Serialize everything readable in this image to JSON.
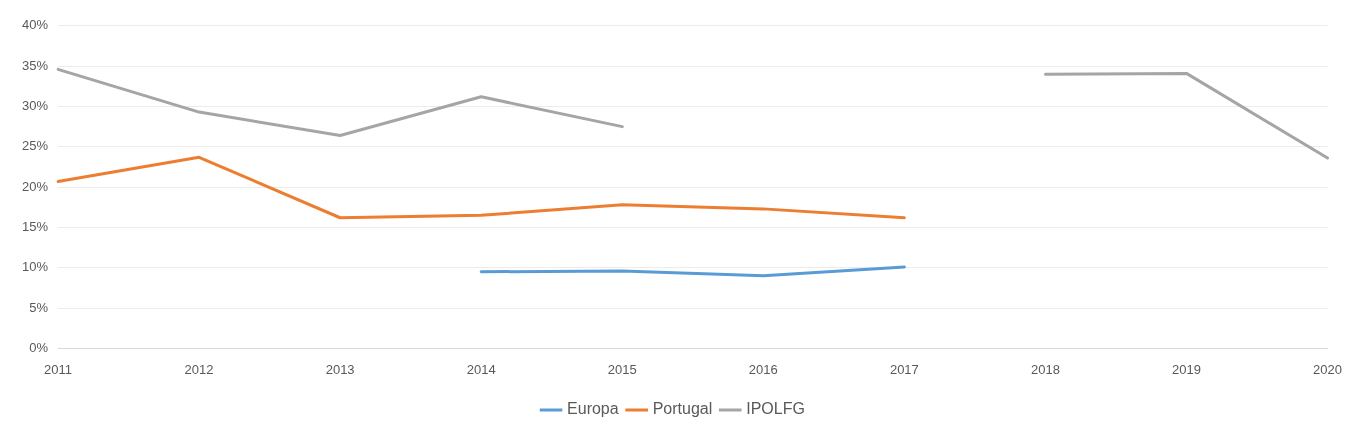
{
  "chart_data": {
    "type": "line",
    "categories": [
      "2011",
      "2012",
      "2013",
      "2014",
      "2015",
      "2016",
      "2017",
      "2018",
      "2019",
      "2020"
    ],
    "series": [
      {
        "name": "Europa",
        "color": "#5b9bd5",
        "values": [
          null,
          null,
          null,
          9.5,
          9.6,
          9.0,
          10.1,
          null,
          null,
          null
        ]
      },
      {
        "name": "Portugal",
        "color": "#ed7d31",
        "values": [
          20.7,
          23.7,
          16.2,
          16.5,
          17.8,
          17.3,
          16.2,
          null,
          null,
          null
        ]
      },
      {
        "name": "IPOLFG",
        "color": "#a5a5a5",
        "values": [
          34.6,
          29.3,
          26.4,
          31.2,
          27.5,
          null,
          null,
          34.0,
          34.1,
          23.6
        ]
      }
    ],
    "ylim": [
      0,
      40
    ],
    "yticks": [
      {
        "value": 0,
        "label": "0%"
      },
      {
        "value": 5,
        "label": "5%"
      },
      {
        "value": 10,
        "label": "10%"
      },
      {
        "value": 15,
        "label": "15%"
      },
      {
        "value": 20,
        "label": "20%"
      },
      {
        "value": 25,
        "label": "25%"
      },
      {
        "value": 30,
        "label": "30%"
      },
      {
        "value": 35,
        "label": "35%"
      },
      {
        "value": 40,
        "label": "40%"
      }
    ],
    "grid": "y",
    "legend": "bottom",
    "marker": "none",
    "line_style": "solid"
  }
}
